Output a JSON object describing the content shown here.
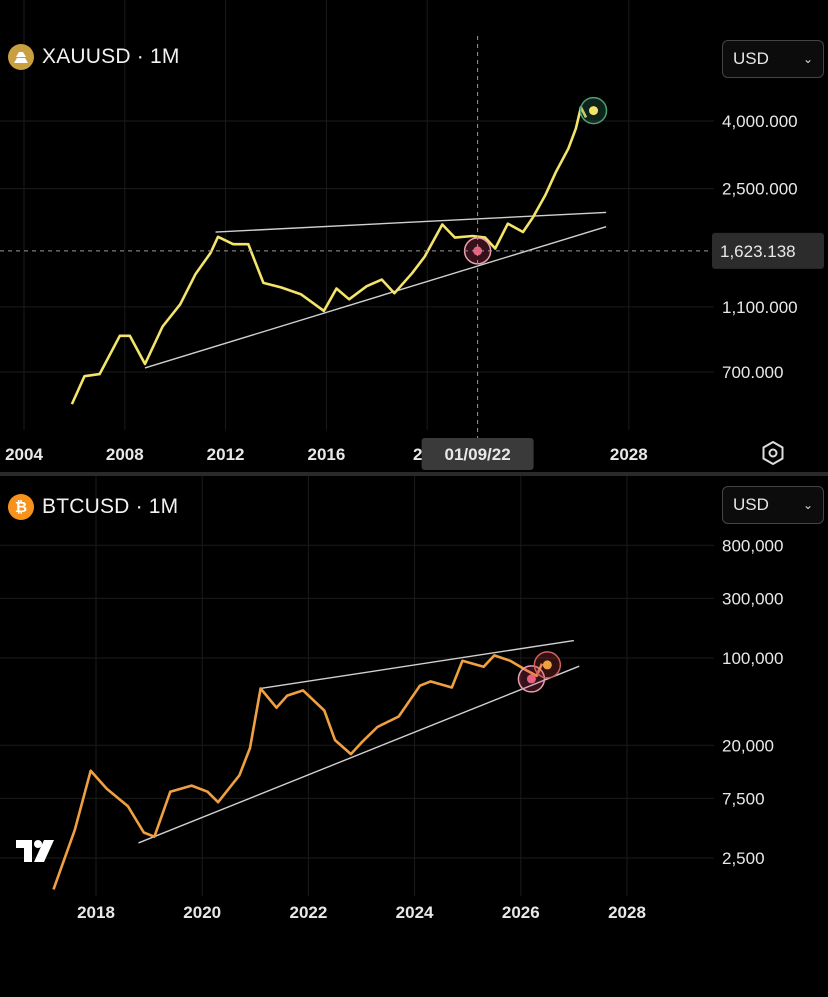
{
  "panels": [
    {
      "symbol": "XAUUSD · 1M",
      "currency": "USD",
      "icon": "gold-bars-icon",
      "crosshair_date": "01/09/22",
      "crosshair_price": "1,623.138"
    },
    {
      "symbol": "BTCUSD · 1M",
      "currency": "USD",
      "icon": "bitcoin-icon",
      "logo": "tradingview-logo"
    }
  ],
  "colors": {
    "gold_line": "#f3e46a",
    "btc_line": "#f0a040",
    "trendline": "#d0d0d0",
    "background": "#000000"
  },
  "chart_data": [
    {
      "type": "line",
      "title": "XAUUSD · 1M",
      "y_scale": "log",
      "y_ticks": [
        "4,000.000",
        "2,500.000",
        "1,623.138",
        "1,100.000",
        "700.000"
      ],
      "x_ticks": [
        "2004",
        "2008",
        "2012",
        "2016",
        "202",
        "01/09/22",
        "2028"
      ],
      "series": [
        {
          "x": [
            2005.9,
            2006.4,
            2007.0,
            2007.8,
            2008.2,
            2008.8,
            2009.5,
            2010.2,
            2010.8,
            2011.4,
            2011.7,
            2012.3,
            2012.9,
            2013.5,
            2014.2,
            2015.0,
            2015.9,
            2016.4,
            2016.9,
            2017.6,
            2018.2,
            2018.7,
            2019.4,
            2019.9,
            2020.6,
            2021.1,
            2021.8,
            2022.3,
            2022.7,
            2023.2,
            2023.8,
            2024.2,
            2024.7,
            2025.1,
            2025.6,
            2025.9,
            2026.1,
            2026.3
          ],
          "y": [
            560,
            680,
            690,
            900,
            900,
            740,
            960,
            1120,
            1380,
            1600,
            1790,
            1700,
            1700,
            1300,
            1260,
            1200,
            1070,
            1250,
            1160,
            1270,
            1330,
            1210,
            1390,
            1560,
            1950,
            1780,
            1800,
            1780,
            1650,
            1960,
            1850,
            2050,
            2400,
            2800,
            3300,
            3800,
            4400,
            4100
          ]
        }
      ]
    },
    {
      "type": "line",
      "title": "BTCUSD · 1M",
      "y_scale": "log",
      "y_ticks": [
        "800,000",
        "300,000",
        "100,000",
        "20,000",
        "7,500",
        "2,500"
      ],
      "x_ticks": [
        "2018",
        "2020",
        "2022",
        "2024",
        "2026",
        "2028"
      ],
      "series": [
        {
          "x": [
            2017.2,
            2017.6,
            2017.9,
            2018.2,
            2018.6,
            2018.9,
            2019.1,
            2019.4,
            2019.8,
            2020.1,
            2020.3,
            2020.7,
            2020.9,
            2021.1,
            2021.4,
            2021.6,
            2021.9,
            2022.3,
            2022.5,
            2022.8,
            2023.0,
            2023.3,
            2023.7,
            2024.1,
            2024.3,
            2024.7,
            2024.9,
            2025.3,
            2025.5,
            2025.8,
            2026.1,
            2026.3,
            2026.4
          ],
          "y": [
            1400,
            4200,
            12500,
            9000,
            6500,
            4000,
            3700,
            8500,
            9500,
            8500,
            7000,
            11500,
            19000,
            57000,
            40000,
            50000,
            55000,
            38000,
            22000,
            17000,
            21000,
            28000,
            34000,
            60000,
            65000,
            58000,
            95000,
            85000,
            105000,
            95000,
            80000,
            72000,
            90000
          ]
        }
      ]
    }
  ]
}
